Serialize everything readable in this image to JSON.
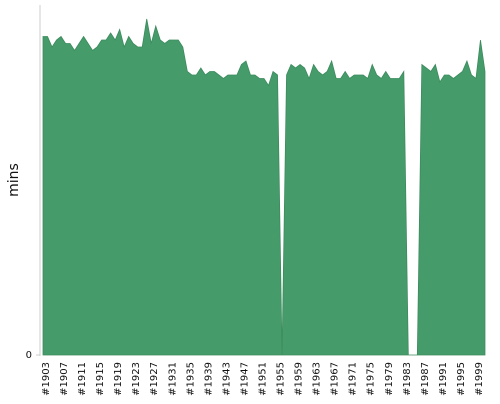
{
  "chart_data": {
    "type": "area",
    "y_label": "mins",
    "categories": [
      "#1903",
      null,
      null,
      null,
      "#1907",
      null,
      null,
      null,
      "#1911",
      null,
      null,
      null,
      "#1915",
      null,
      null,
      null,
      "#1919",
      null,
      null,
      null,
      "#1923",
      null,
      null,
      null,
      "#1927",
      null,
      null,
      null,
      "#1931",
      null,
      null,
      null,
      "#1935",
      null,
      null,
      null,
      "#1939",
      null,
      null,
      null,
      "#1943",
      null,
      null,
      null,
      "#1947",
      null,
      null,
      null,
      "#1951",
      null,
      null,
      null,
      "#1955",
      null,
      null,
      null,
      "#1959",
      null,
      null,
      null,
      "#1963",
      null,
      null,
      null,
      "#1967",
      null,
      null,
      null,
      "#1971",
      null,
      null,
      null,
      "#1975",
      null,
      null,
      null,
      "#1979",
      null,
      null,
      null,
      "#1983",
      null,
      null,
      null,
      "#1987",
      null,
      null,
      null,
      "#1991",
      null,
      null,
      null,
      "#1995",
      null,
      null,
      null,
      "#1999",
      null,
      null
    ],
    "values": [
      91,
      91,
      88,
      90,
      91,
      89,
      89,
      87,
      89,
      91,
      89,
      87,
      88,
      90,
      90,
      92,
      90,
      93,
      88,
      91,
      89,
      88,
      88,
      96,
      89,
      94,
      90,
      89,
      90,
      90,
      90,
      88,
      81,
      80,
      80,
      82,
      80,
      81,
      81,
      80,
      79,
      80,
      80,
      80,
      83,
      84,
      80,
      80,
      79,
      79,
      77,
      81,
      80,
      0,
      80,
      83,
      82,
      83,
      82,
      79,
      83,
      81,
      80,
      81,
      84,
      79,
      79,
      81,
      79,
      80,
      80,
      80,
      79,
      83,
      80,
      79,
      81,
      79,
      79,
      79,
      81,
      0,
      0,
      0,
      83,
      82,
      81,
      83,
      78,
      80,
      80,
      79,
      80,
      81,
      84,
      80,
      79,
      90,
      81
    ],
    "color": "#459c6a",
    "ylim": [
      0,
      100
    ],
    "yticks": [
      0
    ]
  }
}
